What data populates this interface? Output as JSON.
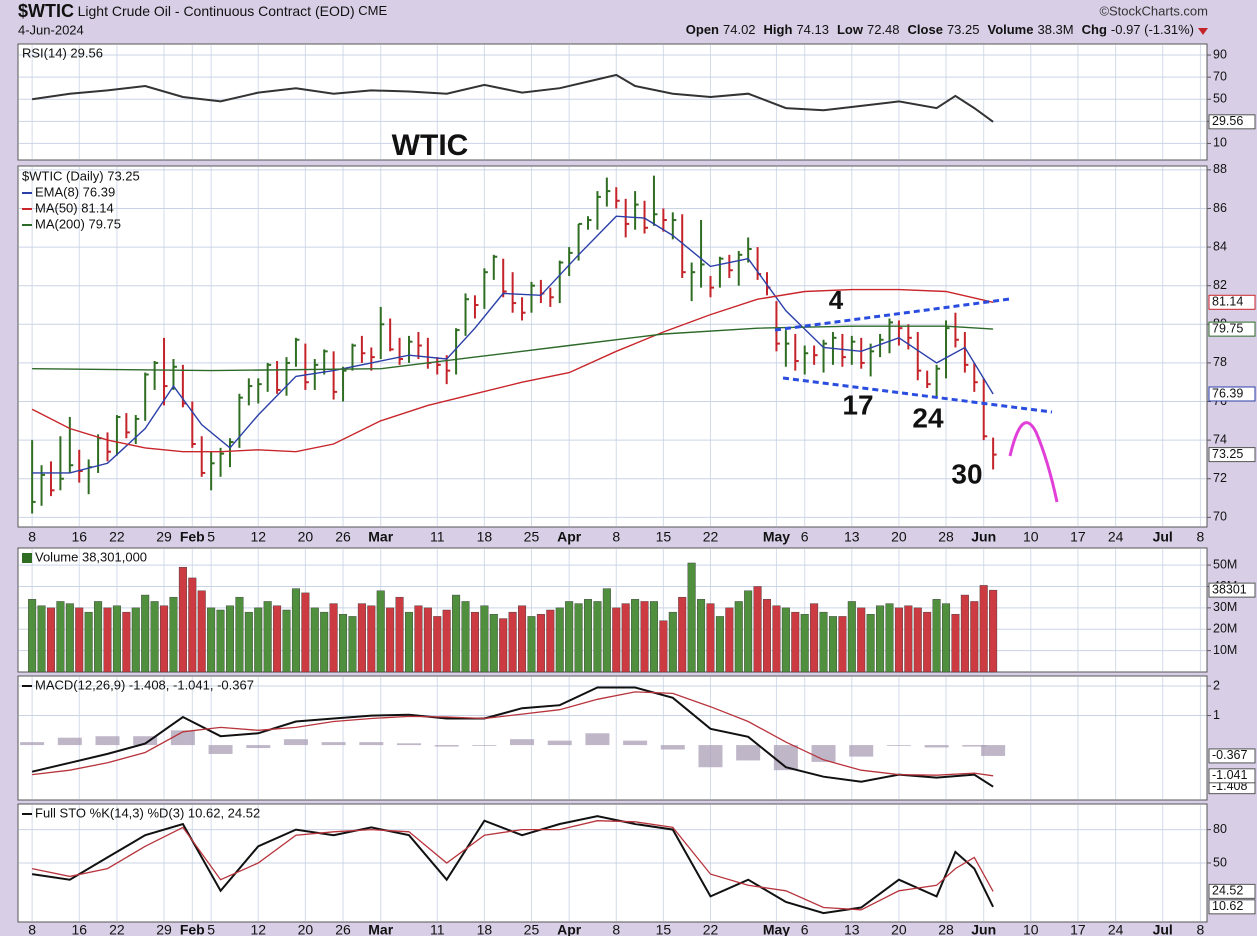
{
  "header": {
    "symbol": "$WTIC",
    "name": "Light Crude Oil - Continuous Contract (EOD)",
    "exchange": "CME",
    "date": "4-Jun-2024",
    "credit": "©StockCharts.com",
    "quote": [
      {
        "label": "Open",
        "value": 74.02
      },
      {
        "label": "High",
        "value": 74.13
      },
      {
        "label": "Low",
        "value": 72.48
      },
      {
        "label": "Close",
        "value": 73.25
      },
      {
        "label": "Volume",
        "value": "38.3M"
      },
      {
        "label": "Chg",
        "value": "-0.97 (-1.31%)"
      }
    ]
  },
  "chart_data": [
    {
      "type": "line",
      "ylim": [
        -5,
        100
      ],
      "yticks": [
        90,
        70,
        50,
        30,
        10
      ],
      "x": [
        0,
        4,
        8,
        12,
        16,
        20,
        24,
        28,
        32,
        36,
        40,
        44,
        48,
        52,
        56,
        60,
        62,
        64,
        68,
        72,
        76,
        80,
        84,
        88,
        92,
        96,
        98,
        100,
        102
      ],
      "series": [
        {
          "name": "RSI(14) 29.56",
          "color": "#333333",
          "values": [
            50,
            55,
            58,
            62,
            52,
            48,
            56,
            60,
            55,
            58,
            57,
            55,
            63,
            56,
            60,
            68,
            72,
            62,
            55,
            52,
            55,
            42,
            40,
            44,
            48,
            42,
            53,
            42,
            29.56
          ]
        }
      ]
    },
    {
      "type": "ohlc",
      "xlim": [
        -1.5,
        124.7
      ],
      "ylim": [
        69.5,
        88.2
      ],
      "yticks": [
        70,
        72,
        74,
        76,
        78,
        80,
        82,
        84,
        86,
        88
      ],
      "xticks": [
        {
          "value": 0,
          "label": "8"
        },
        {
          "value": 5,
          "label": "16"
        },
        {
          "value": 9,
          "label": "22"
        },
        {
          "value": 14,
          "label": "29"
        },
        {
          "value": 17,
          "label": "Feb"
        },
        {
          "value": 19,
          "label": "5"
        },
        {
          "value": 24,
          "label": "12"
        },
        {
          "value": 29,
          "label": "20"
        },
        {
          "value": 33,
          "label": "26"
        },
        {
          "value": 37,
          "label": "Mar"
        },
        {
          "value": 43,
          "label": "11"
        },
        {
          "value": 48,
          "label": "18"
        },
        {
          "value": 53,
          "label": "25"
        },
        {
          "value": 57,
          "label": "Apr"
        },
        {
          "value": 62,
          "label": "8"
        },
        {
          "value": 67,
          "label": "15"
        },
        {
          "value": 72,
          "label": "22"
        },
        {
          "value": 79,
          "label": "May"
        },
        {
          "value": 82,
          "label": "6"
        },
        {
          "value": 87,
          "label": "13"
        },
        {
          "value": 92,
          "label": "20"
        },
        {
          "value": 97,
          "label": "28"
        },
        {
          "value": 101,
          "label": "Jun"
        },
        {
          "value": 106,
          "label": "10"
        },
        {
          "value": 111,
          "label": "17"
        },
        {
          "value": 115,
          "label": "24"
        },
        {
          "value": 120,
          "label": "Jul"
        },
        {
          "value": 124,
          "label": "8"
        }
      ],
      "up_color": "#2f6e22",
      "down_color": "#c42329",
      "ohlc": {
        "name": "$WTIC (Daily) 73.25",
        "high": [
          74.0,
          72.7,
          72.9,
          74.2,
          75.2,
          73.5,
          73.0,
          74.3,
          74.4,
          75.3,
          75.4,
          75.3,
          77.5,
          78.1,
          79.3,
          78.2,
          77.9,
          76.0,
          74.2,
          73.4,
          73.6,
          74.1,
          76.4,
          77.2,
          77.2,
          78.0,
          78.1,
          78.3,
          79.3,
          79.0,
          78.2,
          78.7,
          78.6,
          77.8,
          79.0,
          79.4,
          78.8,
          80.9,
          80.3,
          79.3,
          79.4,
          79.6,
          79.3,
          78.3,
          78.4,
          79.8,
          81.6,
          81.5,
          82.9,
          83.6,
          83.4,
          82.7,
          81.4,
          82.2,
          82.3,
          81.9,
          83.3,
          84.0,
          85.2,
          85.6,
          86.9,
          87.6,
          87.1,
          86.5,
          86.9,
          86.4,
          87.7,
          86.0,
          85.8,
          85.7,
          83.2,
          85.4,
          82.5,
          83.5,
          83.6,
          83.8,
          84.5,
          84.0,
          82.7,
          81.2,
          79.7,
          79.5,
          78.9,
          78.9,
          79.2,
          79.6,
          79.5,
          79.4,
          79.3,
          79.0,
          79.5,
          80.3,
          80.2,
          80.0,
          79.6,
          77.6,
          77.9,
          80.2,
          80.6,
          79.6,
          78.0,
          77.2,
          74.13
        ],
        "low": [
          70.2,
          70.6,
          71.1,
          71.4,
          72.3,
          71.8,
          71.2,
          72.3,
          72.9,
          73.2,
          74.1,
          73.8,
          75.0,
          76.6,
          75.8,
          76.6,
          75.7,
          73.6,
          72.1,
          71.4,
          72.1,
          72.6,
          73.6,
          75.8,
          75.9,
          76.5,
          76.4,
          76.3,
          77.8,
          76.6,
          76.6,
          77.4,
          76.1,
          76.0,
          77.6,
          78.0,
          77.6,
          78.2,
          78.6,
          77.9,
          78.0,
          78.2,
          77.7,
          77.4,
          76.9,
          77.4,
          79.4,
          80.3,
          80.8,
          82.3,
          81.4,
          80.6,
          80.2,
          80.6,
          81.1,
          80.9,
          81.1,
          82.5,
          83.3,
          84.9,
          84.9,
          86.1,
          86.0,
          84.5,
          84.9,
          84.7,
          85.1,
          84.8,
          84.4,
          82.4,
          81.2,
          81.9,
          81.4,
          81.9,
          82.4,
          82.0,
          83.2,
          82.3,
          81.5,
          78.6,
          77.8,
          77.6,
          77.4,
          77.9,
          77.5,
          77.9,
          77.8,
          77.9,
          77.7,
          77.3,
          78.3,
          78.5,
          78.9,
          78.7,
          77.1,
          76.7,
          76.2,
          77.2,
          78.8,
          77.5,
          76.5,
          74.0,
          72.48
        ],
        "close": [
          70.8,
          72.2,
          71.4,
          72.0,
          72.7,
          72.4,
          72.6,
          74.1,
          73.4,
          75.2,
          74.4,
          75.1,
          77.4,
          78.0,
          76.8,
          77.8,
          75.9,
          73.8,
          72.3,
          72.8,
          73.3,
          73.9,
          76.2,
          76.8,
          76.9,
          77.9,
          76.6,
          78.0,
          79.2,
          77.0,
          77.9,
          78.6,
          76.5,
          77.6,
          78.9,
          78.5,
          78.3,
          80.0,
          78.7,
          78.2,
          79.1,
          78.9,
          78.0,
          77.9,
          77.6,
          79.7,
          81.3,
          81.0,
          82.7,
          83.5,
          81.7,
          81.1,
          80.6,
          82.0,
          81.6,
          81.4,
          83.2,
          83.7,
          85.2,
          85.4,
          86.6,
          86.9,
          86.4,
          85.2,
          86.2,
          85.0,
          85.7,
          85.4,
          85.4,
          82.7,
          82.7,
          83.1,
          81.9,
          83.4,
          82.8,
          83.6,
          83.9,
          82.6,
          81.9,
          79.0,
          79.0,
          78.1,
          78.5,
          78.4,
          79.0,
          79.3,
          78.3,
          79.1,
          78.0,
          78.6,
          79.2,
          80.1,
          79.8,
          79.3,
          77.6,
          76.9,
          77.7,
          79.8,
          79.2,
          77.9,
          77.0,
          74.2,
          73.25
        ]
      },
      "series": [
        {
          "name": "EMA(8) 76.39",
          "color": "#2b3fa8",
          "x": [
            0,
            4,
            8,
            12,
            15,
            18,
            21,
            24,
            28,
            32,
            36,
            40,
            44,
            47,
            50,
            54,
            58,
            62,
            65,
            68,
            72,
            76,
            80,
            84,
            88,
            92,
            96,
            99,
            102
          ],
          "values": [
            72.3,
            72.3,
            72.8,
            74.6,
            76.8,
            74.8,
            73.6,
            75.3,
            77.3,
            77.6,
            78.0,
            78.4,
            78.2,
            79.8,
            81.6,
            81.5,
            83.6,
            85.6,
            85.5,
            84.6,
            83.0,
            83.4,
            80.7,
            78.8,
            78.6,
            79.3,
            78.0,
            78.8,
            76.39
          ]
        },
        {
          "name": "MA(50) 81.14",
          "color": "#c8262b",
          "x": [
            0,
            4,
            8,
            12,
            16,
            20,
            24,
            28,
            32,
            37,
            42,
            47,
            52,
            57,
            62,
            67,
            72,
            77,
            82,
            87,
            92,
            97,
            102
          ],
          "values": [
            75.6,
            74.6,
            74.0,
            73.6,
            73.4,
            73.4,
            73.5,
            73.4,
            73.8,
            75.0,
            75.8,
            76.4,
            77.0,
            77.5,
            78.6,
            79.6,
            80.5,
            81.3,
            81.7,
            81.8,
            81.8,
            81.7,
            81.14
          ]
        },
        {
          "name": "MA(200) 79.75",
          "color": "#2d6a2a",
          "x": [
            0,
            19,
            37,
            47,
            57,
            67,
            77,
            87,
            97,
            102
          ],
          "values": [
            77.7,
            77.6,
            77.7,
            78.3,
            78.9,
            79.5,
            79.8,
            79.9,
            79.9,
            79.75
          ]
        }
      ],
      "annotations": [
        {
          "text": "WTIC",
          "color": "#e040d8"
        },
        {
          "text": "4",
          "color": "#2a4de0"
        },
        {
          "text": "17",
          "color": "#2a4de0"
        },
        {
          "text": "24",
          "color": "#2a4de0"
        },
        {
          "text": "30",
          "color": "#2a4de0"
        }
      ]
    },
    {
      "type": "bar",
      "name": "Volume 38,301,000",
      "up_color": "#4f8f3e",
      "down_color": "#cc3b42",
      "ylim": [
        0,
        58000000
      ],
      "yticks": [
        {
          "value": 10000000,
          "label": "10M"
        },
        {
          "value": 20000000,
          "label": "20M"
        },
        {
          "value": 30000000,
          "label": "30M"
        },
        {
          "value": 40000000,
          "label": "40M"
        },
        {
          "value": 50000000,
          "label": "50M"
        }
      ],
      "values": [
        34000000,
        31000000,
        30000000,
        33000000,
        32000000,
        30000000,
        28000000,
        33000000,
        30000000,
        31000000,
        28000000,
        30000000,
        36000000,
        33000000,
        31000000,
        35000000,
        49000000,
        44000000,
        38000000,
        30000000,
        29000000,
        31000000,
        35000000,
        28000000,
        30000000,
        33000000,
        31000000,
        29000000,
        39000000,
        37000000,
        30000000,
        28000000,
        32000000,
        27000000,
        26000000,
        32000000,
        31000000,
        38000000,
        30000000,
        35000000,
        28000000,
        31000000,
        30000000,
        26000000,
        29000000,
        36000000,
        33000000,
        28000000,
        31000000,
        27000000,
        25000000,
        28000000,
        31000000,
        26000000,
        27000000,
        29000000,
        30000000,
        33000000,
        32000000,
        34000000,
        33000000,
        39000000,
        30000000,
        32000000,
        34000000,
        33000000,
        33000000,
        24000000,
        28000000,
        35000000,
        51000000,
        34000000,
        32000000,
        26000000,
        30000000,
        33000000,
        38000000,
        40000000,
        34000000,
        31000000,
        30000000,
        28000000,
        27000000,
        32000000,
        28000000,
        26000000,
        26000000,
        33000000,
        30000000,
        27000000,
        31000000,
        32000000,
        30000000,
        31000000,
        30000000,
        28000000,
        34000000,
        32000000,
        27000000,
        36000000,
        33000000,
        40500000,
        38301000
      ],
      "last_value_label": "38301"
    },
    {
      "type": "line",
      "name": "MACD(12,26,9) -1.408, -1.041, -0.367",
      "ylim": [
        -1.86,
        2.34
      ],
      "yticks": [
        1,
        2
      ],
      "x": [
        0,
        4,
        8,
        12,
        16,
        20,
        24,
        28,
        32,
        36,
        40,
        44,
        48,
        52,
        56,
        60,
        64,
        68,
        72,
        76,
        80,
        84,
        88,
        92,
        96,
        100,
        102
      ],
      "series": [
        {
          "name": "MACD",
          "color": "#111111",
          "values": [
            -0.9,
            -0.6,
            -0.3,
            0.05,
            0.95,
            0.3,
            0.4,
            0.8,
            0.9,
            1.0,
            1.03,
            0.9,
            0.9,
            1.25,
            1.35,
            1.95,
            1.95,
            1.6,
            0.55,
            0.28,
            -0.75,
            -1.07,
            -1.24,
            -1.0,
            -1.1,
            -1.0,
            -1.408
          ]
        },
        {
          "name": "Signal",
          "color": "#b8343c",
          "values": [
            -1.0,
            -0.85,
            -0.6,
            -0.25,
            0.45,
            0.6,
            0.5,
            0.6,
            0.8,
            0.9,
            0.97,
            0.95,
            0.9,
            1.05,
            1.2,
            1.55,
            1.8,
            1.75,
            1.3,
            0.8,
            0.1,
            -0.5,
            -0.85,
            -1.0,
            -1.02,
            -0.95,
            -1.041
          ]
        },
        {
          "name": "Histogram",
          "color": "#a99db6",
          "style": "histogram",
          "values": [
            0.1,
            0.25,
            0.3,
            0.3,
            0.5,
            -0.3,
            -0.1,
            0.2,
            0.1,
            0.1,
            0.06,
            -0.05,
            0,
            0.2,
            0.15,
            0.4,
            0.15,
            -0.15,
            -0.75,
            -0.52,
            -0.85,
            -0.57,
            -0.39,
            0,
            -0.08,
            -0.05,
            -0.367
          ]
        }
      ]
    },
    {
      "type": "line",
      "name": "Full STO %K(14,3) %D(3) 10.62, 24.52",
      "ylim": [
        -3,
        103
      ],
      "yticks": [
        50,
        80
      ],
      "x": [
        0,
        4,
        8,
        12,
        16,
        20,
        24,
        28,
        32,
        36,
        40,
        44,
        48,
        52,
        56,
        60,
        64,
        68,
        72,
        76,
        80,
        84,
        88,
        92,
        96,
        98,
        100,
        102
      ],
      "series": [
        {
          "name": "%K",
          "color": "#111111",
          "values": [
            40,
            35,
            55,
            75,
            85,
            25,
            65,
            80,
            75,
            82,
            75,
            35,
            88,
            75,
            85,
            92,
            85,
            80,
            20,
            35,
            15,
            5,
            10,
            35,
            20,
            60,
            45,
            10.62
          ]
        },
        {
          "name": "%D",
          "color": "#b8343c",
          "values": [
            45,
            38,
            45,
            65,
            82,
            35,
            50,
            75,
            78,
            80,
            78,
            50,
            75,
            80,
            80,
            88,
            87,
            82,
            40,
            30,
            25,
            10,
            8,
            25,
            30,
            45,
            55,
            24.52
          ]
        }
      ]
    }
  ]
}
